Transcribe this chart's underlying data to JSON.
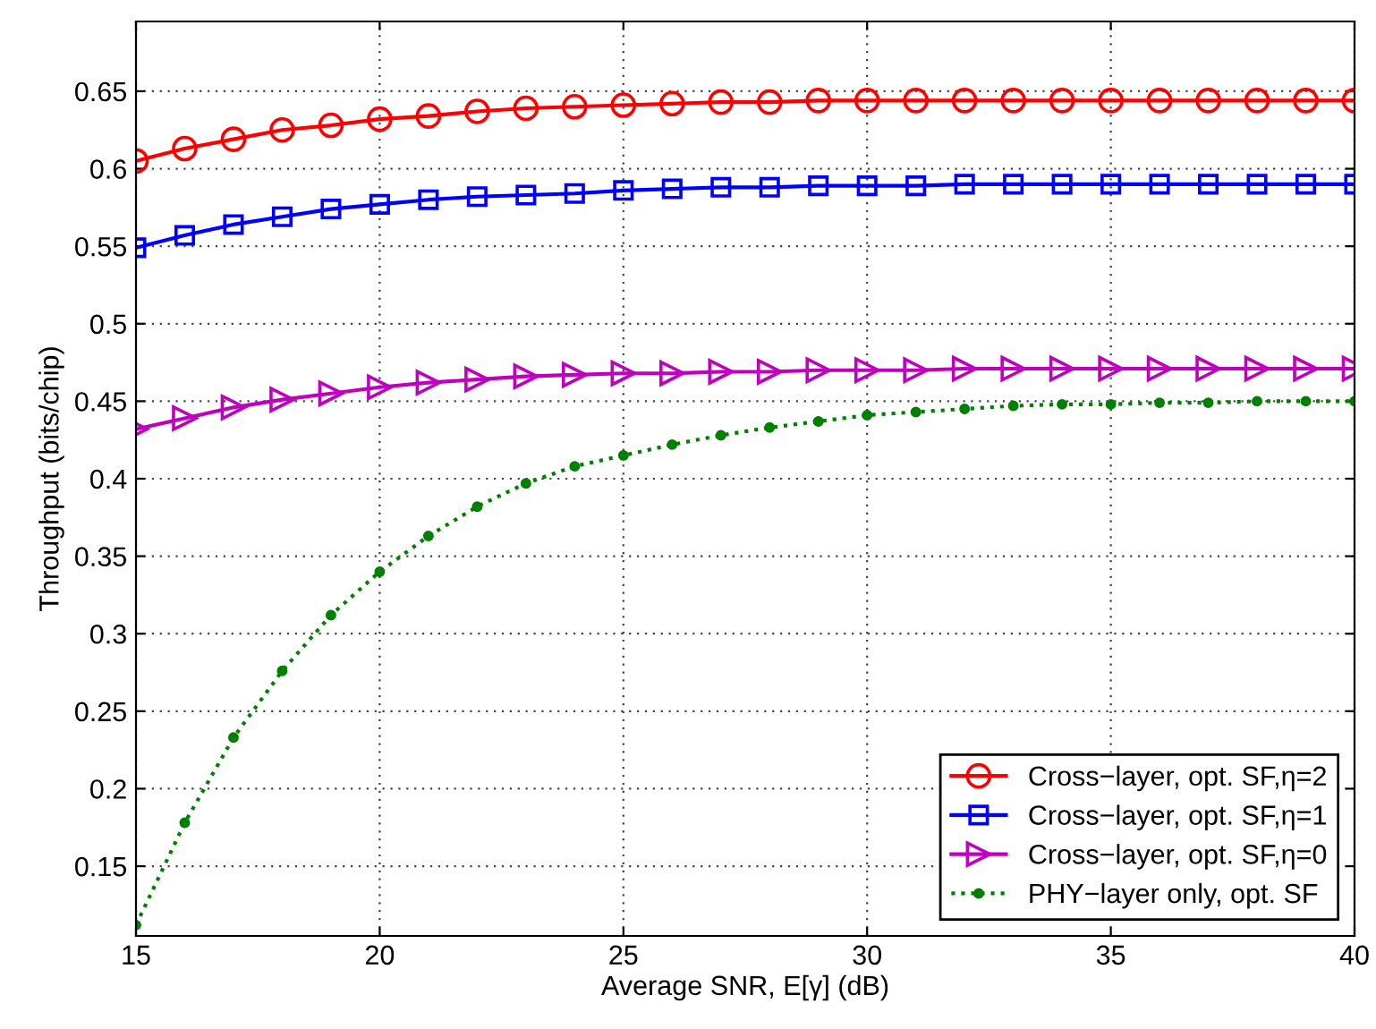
{
  "chart_data": {
    "type": "line",
    "xlabel": "Average SNR, E[γ] (dB)",
    "ylabel": "Throughput (bits/chip)",
    "x": [
      15,
      16,
      17,
      18,
      19,
      20,
      21,
      22,
      23,
      24,
      25,
      26,
      27,
      28,
      29,
      30,
      31,
      32,
      33,
      34,
      35,
      36,
      37,
      38,
      39,
      40
    ],
    "series": [
      {
        "name": "Cross−layer, opt. SF,η=2",
        "color": "#ff0000",
        "marker": "circle",
        "line_style": "solid",
        "values": [
          0.605,
          0.613,
          0.619,
          0.625,
          0.628,
          0.632,
          0.634,
          0.637,
          0.639,
          0.64,
          0.641,
          0.642,
          0.643,
          0.643,
          0.644,
          0.644,
          0.644,
          0.644,
          0.644,
          0.644,
          0.644,
          0.644,
          0.644,
          0.644,
          0.644,
          0.644
        ]
      },
      {
        "name": "Cross−layer, opt. SF,η=1",
        "color": "#0000ff",
        "marker": "square",
        "line_style": "solid",
        "values": [
          0.549,
          0.557,
          0.564,
          0.569,
          0.574,
          0.577,
          0.58,
          0.582,
          0.583,
          0.584,
          0.586,
          0.587,
          0.588,
          0.588,
          0.589,
          0.589,
          0.589,
          0.59,
          0.59,
          0.59,
          0.59,
          0.59,
          0.59,
          0.59,
          0.59,
          0.59
        ]
      },
      {
        "name": "Cross−layer, opt. SF,η=0",
        "color": "#bf00bf",
        "marker": "triangle",
        "line_style": "solid",
        "values": [
          0.432,
          0.439,
          0.446,
          0.451,
          0.455,
          0.459,
          0.462,
          0.464,
          0.466,
          0.467,
          0.468,
          0.468,
          0.469,
          0.469,
          0.47,
          0.47,
          0.47,
          0.471,
          0.471,
          0.471,
          0.471,
          0.471,
          0.471,
          0.471,
          0.471,
          0.471
        ]
      },
      {
        "name": "PHY−layer only, opt. SF",
        "color": "#008000",
        "marker": "dot",
        "line_style": "dotted",
        "values": [
          0.112,
          0.178,
          0.233,
          0.276,
          0.312,
          0.34,
          0.363,
          0.382,
          0.397,
          0.408,
          0.415,
          0.422,
          0.428,
          0.433,
          0.437,
          0.441,
          0.443,
          0.445,
          0.447,
          0.448,
          0.448,
          0.449,
          0.449,
          0.45,
          0.45,
          0.45
        ]
      }
    ],
    "xlim": [
      15,
      40
    ],
    "xticks": [
      15,
      20,
      25,
      30,
      35,
      40
    ],
    "ylim": [
      0.105,
      0.695
    ],
    "yticks": [
      0.15,
      0.2,
      0.25,
      0.3,
      0.35,
      0.4,
      0.45,
      0.5,
      0.55,
      0.6,
      0.65
    ],
    "grid": true,
    "legend": "bottom right"
  }
}
